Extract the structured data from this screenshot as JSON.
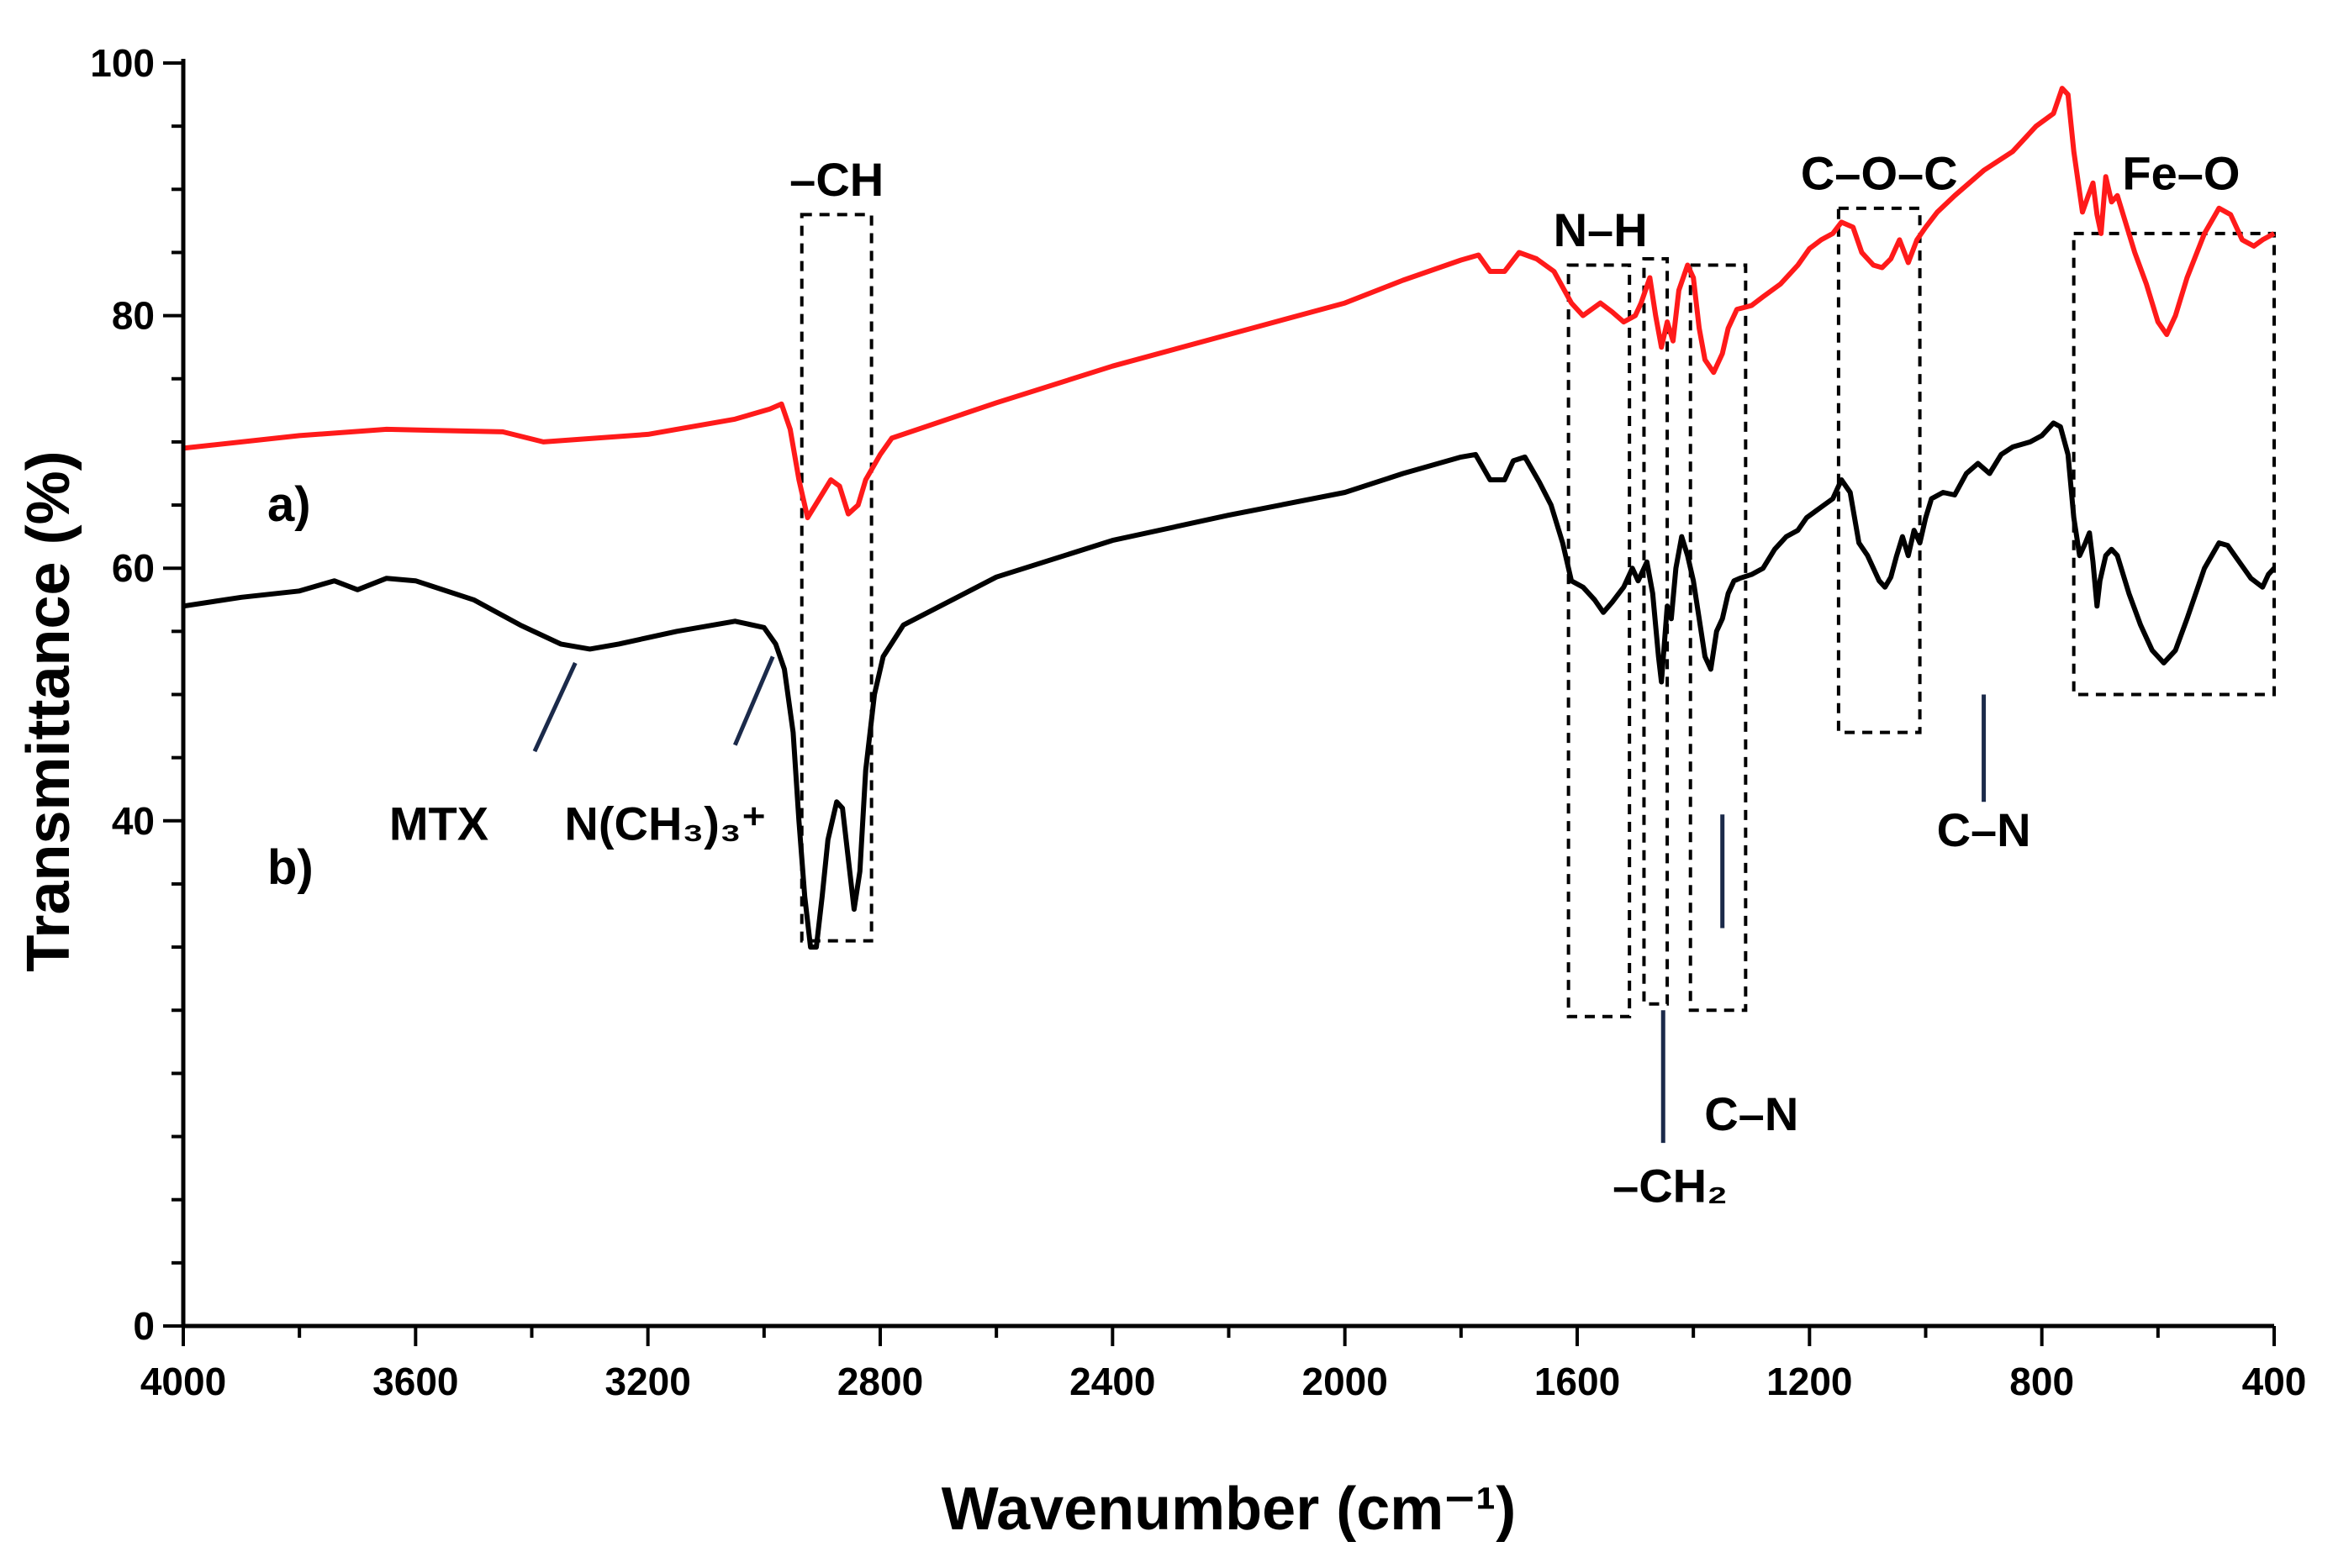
{
  "chart_data": {
    "type": "line",
    "xlabel": "Wavenumber (cm⁻¹)",
    "ylabel": "Transmittance (%)",
    "xlim": [
      4000,
      400
    ],
    "ylim": [
      0,
      100
    ],
    "x_ticks": [
      4000,
      3600,
      3200,
      2800,
      2400,
      2000,
      1600,
      1200,
      800,
      400
    ],
    "y_ticks": [
      0,
      40,
      60,
      80,
      100
    ],
    "series": [
      {
        "name": "a)",
        "color": "#ff1a1a",
        "points": [
          [
            4000,
            69.5
          ],
          [
            3800,
            70.5
          ],
          [
            3650,
            71
          ],
          [
            3450,
            70.8
          ],
          [
            3380,
            70
          ],
          [
            3200,
            70.6
          ],
          [
            3050,
            71.8
          ],
          [
            2990,
            72.6
          ],
          [
            2970,
            73
          ],
          [
            2955,
            71
          ],
          [
            2940,
            67
          ],
          [
            2925,
            64
          ],
          [
            2905,
            65.5
          ],
          [
            2885,
            67
          ],
          [
            2870,
            66.5
          ],
          [
            2855,
            64.3
          ],
          [
            2838,
            65
          ],
          [
            2825,
            67
          ],
          [
            2800,
            69
          ],
          [
            2780,
            70.3
          ],
          [
            2600,
            73.1
          ],
          [
            2400,
            76
          ],
          [
            2200,
            78.5
          ],
          [
            2000,
            81
          ],
          [
            1900,
            82.8
          ],
          [
            1800,
            84.4
          ],
          [
            1770,
            84.8
          ],
          [
            1750,
            83.5
          ],
          [
            1725,
            83.5
          ],
          [
            1700,
            85
          ],
          [
            1670,
            84.5
          ],
          [
            1640,
            83.5
          ],
          [
            1610,
            81
          ],
          [
            1590,
            80
          ],
          [
            1560,
            81
          ],
          [
            1540,
            80.3
          ],
          [
            1520,
            79.5
          ],
          [
            1500,
            80
          ],
          [
            1490,
            81
          ],
          [
            1475,
            83
          ],
          [
            1465,
            80
          ],
          [
            1455,
            77.5
          ],
          [
            1445,
            79.5
          ],
          [
            1435,
            78
          ],
          [
            1425,
            82
          ],
          [
            1410,
            84
          ],
          [
            1400,
            83
          ],
          [
            1390,
            79
          ],
          [
            1380,
            76.5
          ],
          [
            1365,
            75.5
          ],
          [
            1350,
            77
          ],
          [
            1340,
            79
          ],
          [
            1325,
            80.5
          ],
          [
            1300,
            80.8
          ],
          [
            1280,
            81.5
          ],
          [
            1250,
            82.5
          ],
          [
            1220,
            84
          ],
          [
            1200,
            85.3
          ],
          [
            1180,
            86
          ],
          [
            1160,
            86.5
          ],
          [
            1145,
            87.4
          ],
          [
            1125,
            87
          ],
          [
            1110,
            85
          ],
          [
            1090,
            84
          ],
          [
            1075,
            83.8
          ],
          [
            1060,
            84.5
          ],
          [
            1045,
            86
          ],
          [
            1030,
            84.2
          ],
          [
            1015,
            86
          ],
          [
            1000,
            87
          ],
          [
            980,
            88.2
          ],
          [
            950,
            89.5
          ],
          [
            900,
            91.5
          ],
          [
            850,
            93
          ],
          [
            810,
            95
          ],
          [
            780,
            96
          ],
          [
            765,
            98
          ],
          [
            755,
            97.5
          ],
          [
            745,
            93
          ],
          [
            730,
            88.2
          ],
          [
            720,
            89.5
          ],
          [
            712,
            90.5
          ],
          [
            705,
            88
          ],
          [
            698,
            86.5
          ],
          [
            690,
            91
          ],
          [
            680,
            89
          ],
          [
            670,
            89.5
          ],
          [
            660,
            88
          ],
          [
            640,
            85
          ],
          [
            620,
            82.5
          ],
          [
            600,
            79.5
          ],
          [
            585,
            78.5
          ],
          [
            570,
            80
          ],
          [
            550,
            83
          ],
          [
            520,
            86.5
          ],
          [
            495,
            88.5
          ],
          [
            475,
            88
          ],
          [
            455,
            86
          ],
          [
            435,
            85.5
          ],
          [
            420,
            86
          ],
          [
            400,
            86.5
          ]
        ]
      },
      {
        "name": "b)",
        "color": "#000000",
        "points": [
          [
            4000,
            57
          ],
          [
            3900,
            57.7
          ],
          [
            3800,
            58.2
          ],
          [
            3740,
            59
          ],
          [
            3700,
            58.3
          ],
          [
            3650,
            59.2
          ],
          [
            3600,
            59
          ],
          [
            3500,
            57.5
          ],
          [
            3420,
            55.5
          ],
          [
            3350,
            54
          ],
          [
            3300,
            53.6
          ],
          [
            3250,
            54
          ],
          [
            3150,
            55
          ],
          [
            3050,
            55.8
          ],
          [
            3000,
            55.3
          ],
          [
            2980,
            54
          ],
          [
            2965,
            52
          ],
          [
            2950,
            47
          ],
          [
            2940,
            40
          ],
          [
            2930,
            34
          ],
          [
            2920,
            30
          ],
          [
            2910,
            30
          ],
          [
            2900,
            34
          ],
          [
            2890,
            38.5
          ],
          [
            2875,
            41.5
          ],
          [
            2865,
            41
          ],
          [
            2855,
            37
          ],
          [
            2845,
            33
          ],
          [
            2835,
            36
          ],
          [
            2825,
            44
          ],
          [
            2810,
            50
          ],
          [
            2795,
            53
          ],
          [
            2760,
            55.5
          ],
          [
            2600,
            59.3
          ],
          [
            2400,
            62.2
          ],
          [
            2200,
            64.2
          ],
          [
            2000,
            66
          ],
          [
            1900,
            67.5
          ],
          [
            1800,
            68.8
          ],
          [
            1775,
            69
          ],
          [
            1750,
            67
          ],
          [
            1725,
            67
          ],
          [
            1710,
            68.5
          ],
          [
            1690,
            68.8
          ],
          [
            1665,
            66.8
          ],
          [
            1645,
            65
          ],
          [
            1625,
            62
          ],
          [
            1610,
            59
          ],
          [
            1590,
            58.5
          ],
          [
            1570,
            57.5
          ],
          [
            1555,
            56.5
          ],
          [
            1540,
            57.3
          ],
          [
            1520,
            58.5
          ],
          [
            1505,
            60
          ],
          [
            1495,
            59
          ],
          [
            1480,
            60.5
          ],
          [
            1470,
            58
          ],
          [
            1460,
            53
          ],
          [
            1455,
            51
          ],
          [
            1445,
            57
          ],
          [
            1438,
            56
          ],
          [
            1430,
            60
          ],
          [
            1420,
            62.5
          ],
          [
            1410,
            61
          ],
          [
            1400,
            59
          ],
          [
            1390,
            56
          ],
          [
            1380,
            53
          ],
          [
            1370,
            52
          ],
          [
            1360,
            55
          ],
          [
            1350,
            56
          ],
          [
            1340,
            58
          ],
          [
            1330,
            59
          ],
          [
            1320,
            59.2
          ],
          [
            1300,
            59.5
          ],
          [
            1280,
            60
          ],
          [
            1260,
            61.5
          ],
          [
            1240,
            62.5
          ],
          [
            1220,
            63
          ],
          [
            1205,
            64
          ],
          [
            1190,
            64.5
          ],
          [
            1175,
            65
          ],
          [
            1160,
            65.5
          ],
          [
            1145,
            67
          ],
          [
            1130,
            66
          ],
          [
            1115,
            62
          ],
          [
            1100,
            61
          ],
          [
            1090,
            60
          ],
          [
            1080,
            59
          ],
          [
            1070,
            58.5
          ],
          [
            1060,
            59.3
          ],
          [
            1050,
            61
          ],
          [
            1040,
            62.5
          ],
          [
            1030,
            61
          ],
          [
            1020,
            63
          ],
          [
            1010,
            62
          ],
          [
            1000,
            64
          ],
          [
            990,
            65.5
          ],
          [
            970,
            66
          ],
          [
            950,
            65.8
          ],
          [
            930,
            67.5
          ],
          [
            910,
            68.3
          ],
          [
            890,
            67.5
          ],
          [
            870,
            69
          ],
          [
            850,
            69.6
          ],
          [
            820,
            70
          ],
          [
            800,
            70.5
          ],
          [
            780,
            71.5
          ],
          [
            768,
            71.2
          ],
          [
            755,
            69
          ],
          [
            745,
            64
          ],
          [
            735,
            61
          ],
          [
            725,
            62
          ],
          [
            718,
            62.8
          ],
          [
            712,
            60.5
          ],
          [
            705,
            57
          ],
          [
            700,
            59
          ],
          [
            690,
            61
          ],
          [
            680,
            61.5
          ],
          [
            670,
            61
          ],
          [
            650,
            58
          ],
          [
            630,
            55.5
          ],
          [
            610,
            53.5
          ],
          [
            590,
            52.5
          ],
          [
            570,
            53.5
          ],
          [
            550,
            56
          ],
          [
            520,
            60
          ],
          [
            495,
            62
          ],
          [
            480,
            61.8
          ],
          [
            460,
            60.5
          ],
          [
            440,
            59.2
          ],
          [
            420,
            58.5
          ],
          [
            410,
            59.5
          ],
          [
            400,
            60
          ]
        ]
      }
    ],
    "series_labels": [
      "a)",
      "b)"
    ],
    "annotations": [
      {
        "text": "–CH",
        "region": [
          2935,
          2815
        ]
      },
      {
        "text": "N–H",
        "region": [
          1615,
          1510
        ]
      },
      {
        "text": "–CH₂",
        "region": [
          1485,
          1445
        ]
      },
      {
        "text": "C–N",
        "region": [
          1405,
          1310
        ]
      },
      {
        "text": "C–O–C",
        "region": [
          1150,
          1010
        ]
      },
      {
        "text": "Fe–O",
        "region": [
          745,
          400
        ]
      },
      {
        "text": "MTX",
        "wavenumber": 3330
      },
      {
        "text": "N(CH₃)₃⁺",
        "wavenumber": 2980
      },
      {
        "text": "C–N",
        "wavenumber": 900
      }
    ]
  }
}
